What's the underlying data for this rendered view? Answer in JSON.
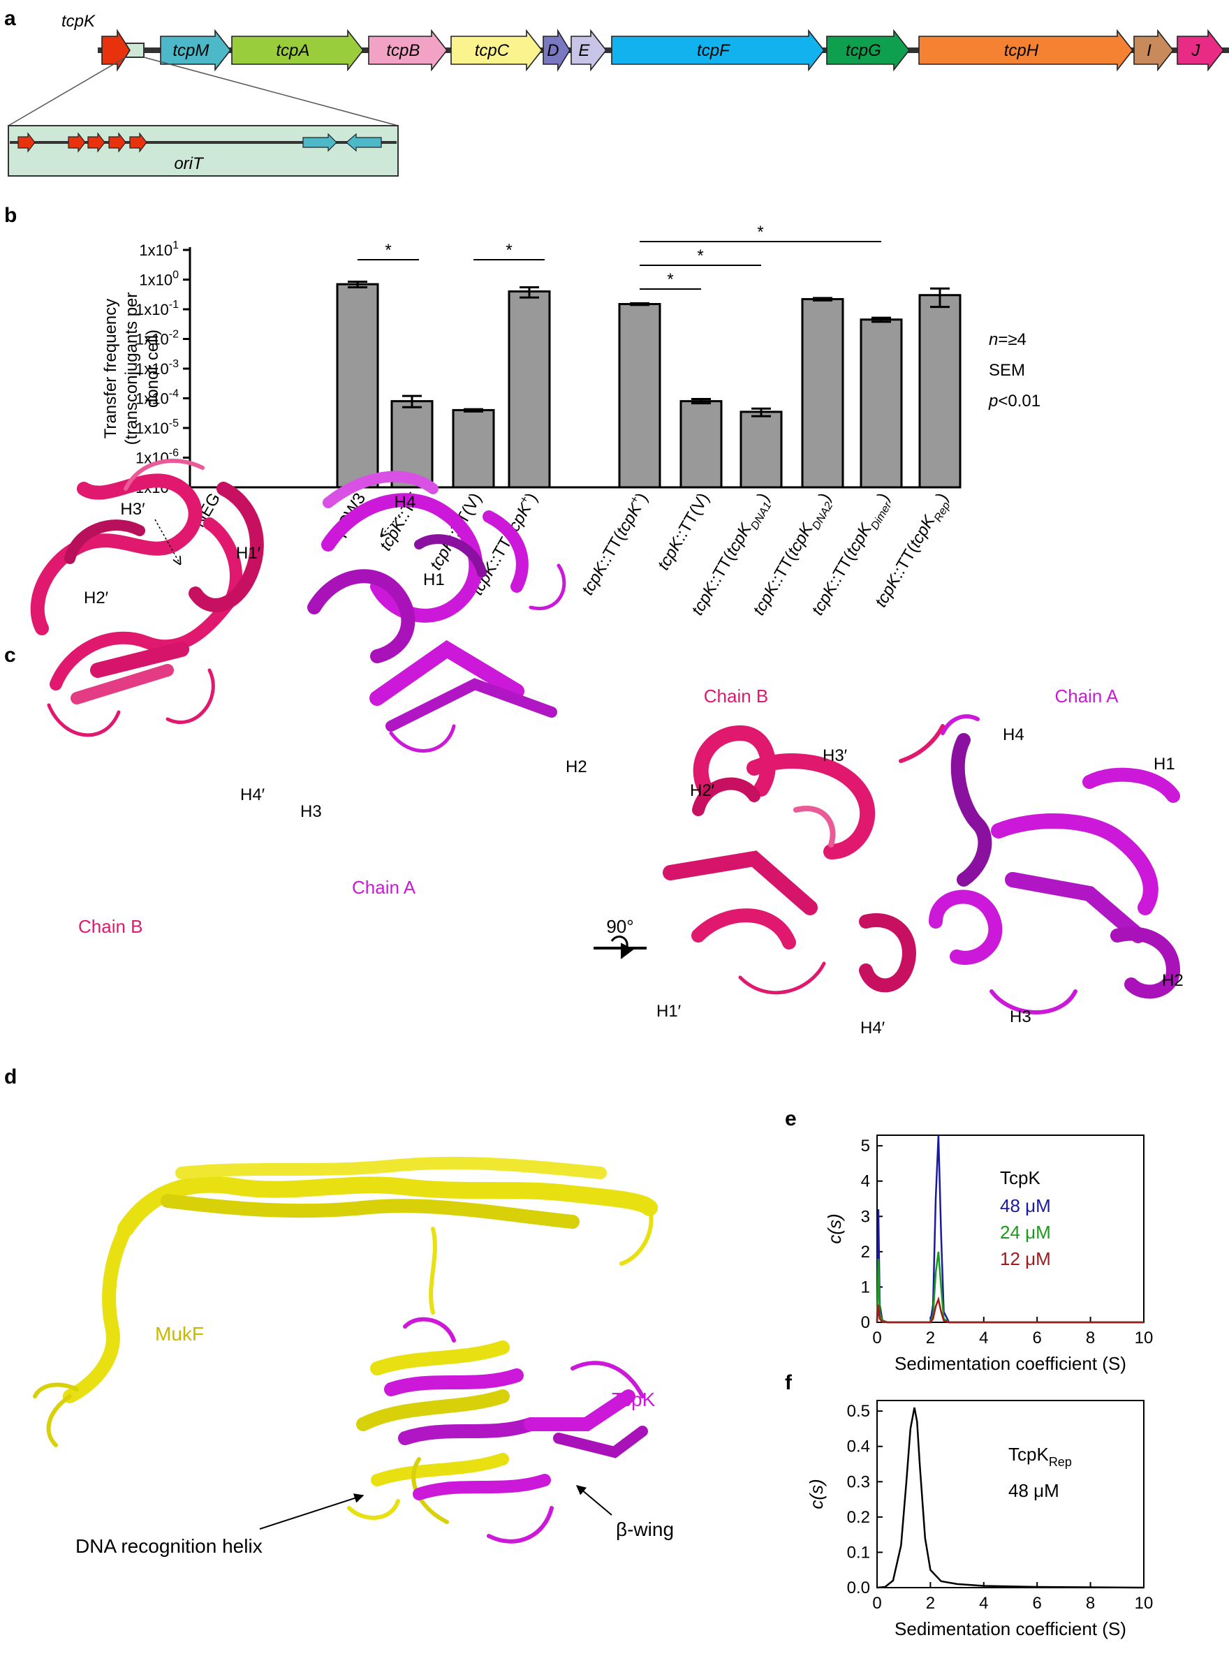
{
  "panels": {
    "a": "a",
    "b": "b",
    "c": "c",
    "d": "d",
    "e": "e",
    "f": "f"
  },
  "panel_a": {
    "genes": [
      {
        "label": "tcpK",
        "color": "#e8320e"
      },
      {
        "label": "tcpM",
        "color": "#4cb8c8"
      },
      {
        "label": "tcpA",
        "color": "#9acd3c"
      },
      {
        "label": "tcpB",
        "color": "#f2a2c4"
      },
      {
        "label": "tcpC",
        "color": "#fbf38e"
      },
      {
        "label": "D",
        "color": "#7a78c0"
      },
      {
        "label": "E",
        "color": "#c8c4e8"
      },
      {
        "label": "tcpF",
        "color": "#12b2ee"
      },
      {
        "label": "tcpG",
        "color": "#0ea04e"
      },
      {
        "label": "tcpH",
        "color": "#f58232"
      },
      {
        "label": "I",
        "color": "#c88a5a"
      },
      {
        "label": "J",
        "color": "#e82c86"
      }
    ],
    "inset_label": "oriT",
    "inset_color": "#cde8d6"
  },
  "chart_data": [
    {
      "type": "bar",
      "ylabel": "Transfer frequency (transconjugants per donor cell)",
      "ylabel_lines": [
        "Transfer frequency",
        "(transconjugants per",
        "donor cell)"
      ],
      "yscale": "log",
      "ylim": [
        1e-07,
        10
      ],
      "yticks": [
        "1x10-7",
        "1x10-6",
        "1x10-5",
        "1x10-4",
        "1x10-3",
        "1x10-2",
        "1x10-1",
        "1x100",
        "1x101"
      ],
      "ytick_base": "1x10",
      "ytick_exps": [
        "-7",
        "-6",
        "-5",
        "-4",
        "-3",
        "-2",
        "-1",
        "0",
        "1"
      ],
      "categories": [
        "NEG",
        "pCW3",
        "tcpK::TT",
        "tcpK::TT(V)",
        "tcpK::TT(tcpK+)",
        "tcpK::TT(tcpK+)",
        "tcpK::TT(V)",
        "tcpK::TT(tcpKDNA1)",
        "tcpK::TT(tcpKDNA2)",
        "tcpK::TT(tcpKDimer)",
        "tcpK::TT(tcpKRep)"
      ],
      "values": [
        null,
        0.7,
        8e-05,
        4e-05,
        0.4,
        0.15,
        8e-05,
        3.5e-05,
        0.22,
        0.045,
        0.3
      ],
      "err_low": [
        null,
        0.55,
        5e-05,
        3.6e-05,
        0.25,
        0.14,
        6.8e-05,
        2.5e-05,
        0.2,
        0.038,
        0.12
      ],
      "err_high": [
        null,
        0.85,
        0.00012,
        4.3e-05,
        0.55,
        0.16,
        9.5e-05,
        4.5e-05,
        0.24,
        0.052,
        0.5
      ],
      "significance": [
        {
          "from": "pCW3",
          "to": "tcpK::TT",
          "label": "*"
        },
        {
          "from": "tcpK::TT(V)",
          "to": "tcpK::TT(tcpK+)",
          "label": "*"
        },
        {
          "from": "tcpK::TT(tcpK+)",
          "to": "tcpK::TT(V)",
          "label": "*"
        },
        {
          "from": "tcpK::TT(tcpK+)",
          "to": "tcpK::TT(tcpKDNA1)",
          "label": "*"
        },
        {
          "from": "tcpK::TT(tcpK+)",
          "to": "tcpK::TT(tcpKDimer)",
          "label": "*"
        }
      ],
      "annotation_lines": [
        "n=≥4",
        "SEM",
        "p<0.01"
      ]
    },
    {
      "type": "line",
      "xlabel": "Sedimentation coefficient (S)",
      "ylabel": "c(s)",
      "xlim": [
        0,
        10
      ],
      "ylim": [
        0,
        5.3
      ],
      "xticks": [
        "0",
        "2",
        "4",
        "6",
        "8",
        "10"
      ],
      "yticks": [
        "0",
        "1",
        "2",
        "3",
        "4",
        "5"
      ],
      "legend_title": "TcpK",
      "series": [
        {
          "name": "48 μM",
          "color": "#1a1aa0",
          "x": [
            0,
            0.05,
            0.1,
            0.2,
            0.4,
            1.0,
            2.0,
            2.1,
            2.2,
            2.3,
            2.4,
            2.5,
            2.7,
            4.0,
            10
          ],
          "y": [
            0,
            3.2,
            0.5,
            0.05,
            0,
            0,
            0,
            0.5,
            3.5,
            5.3,
            2.5,
            0.3,
            0,
            0,
            0
          ]
        },
        {
          "name": "24 μM",
          "color": "#1a9a1a",
          "x": [
            0,
            0.05,
            0.1,
            0.2,
            0.4,
            1.0,
            2.0,
            2.1,
            2.2,
            2.3,
            2.4,
            2.5,
            2.7,
            4.0,
            10
          ],
          "y": [
            0,
            1.8,
            0.3,
            0.03,
            0,
            0,
            0,
            0.2,
            1.4,
            2.0,
            1.0,
            0.1,
            0,
            0,
            0
          ]
        },
        {
          "name": "12 μM",
          "color": "#a01a1a",
          "x": [
            0,
            0.05,
            0.1,
            0.2,
            0.4,
            1.0,
            2.0,
            2.1,
            2.2,
            2.3,
            2.4,
            2.5,
            2.7,
            4.0,
            10
          ],
          "y": [
            0,
            0.5,
            0.1,
            0.01,
            0,
            0,
            0,
            0.1,
            0.45,
            0.65,
            0.3,
            0.05,
            0,
            0,
            0
          ]
        }
      ]
    },
    {
      "type": "line",
      "xlabel": "Sedimentation coefficient (S)",
      "ylabel": "c(s)",
      "xlim": [
        0,
        10
      ],
      "ylim": [
        0,
        0.53
      ],
      "xticks": [
        "0",
        "2",
        "4",
        "6",
        "8",
        "10"
      ],
      "yticks": [
        "0.0",
        "0.1",
        "0.2",
        "0.3",
        "0.4",
        "0.5"
      ],
      "legend_title": "TcpKRep",
      "legend_sub": "48 μM",
      "series": [
        {
          "name": "48 μM",
          "color": "#000000",
          "x": [
            0,
            0.3,
            0.6,
            0.9,
            1.1,
            1.25,
            1.4,
            1.5,
            1.6,
            1.8,
            2.0,
            2.4,
            3.0,
            4.0,
            6.0,
            10
          ],
          "y": [
            0,
            0.002,
            0.02,
            0.12,
            0.3,
            0.45,
            0.51,
            0.47,
            0.35,
            0.14,
            0.05,
            0.018,
            0.01,
            0.005,
            0.002,
            0
          ]
        }
      ]
    }
  ],
  "panel_c": {
    "left": {
      "labels": [
        "H3′",
        "H4",
        "H1′",
        "H2′",
        "H1",
        "H2",
        "H3",
        "H4′"
      ],
      "chain_b": "Chain B",
      "chain_a": "Chain A"
    },
    "rotation": "90°",
    "right": {
      "chain_b": "Chain B",
      "chain_a": "Chain A",
      "labels": [
        "H4",
        "H1",
        "H3′",
        "H2′",
        "H1′",
        "H4′",
        "H2",
        "H3"
      ]
    },
    "color_b": "#e0186e",
    "color_a": "#cc18d8"
  },
  "panel_d": {
    "mukf": "MukF",
    "tcpk": "TcpK",
    "dna_helix": "DNA recognition helix",
    "beta_wing": "β-wing",
    "color_mukf": "#e8e010",
    "color_tcpk": "#cc18d8"
  }
}
